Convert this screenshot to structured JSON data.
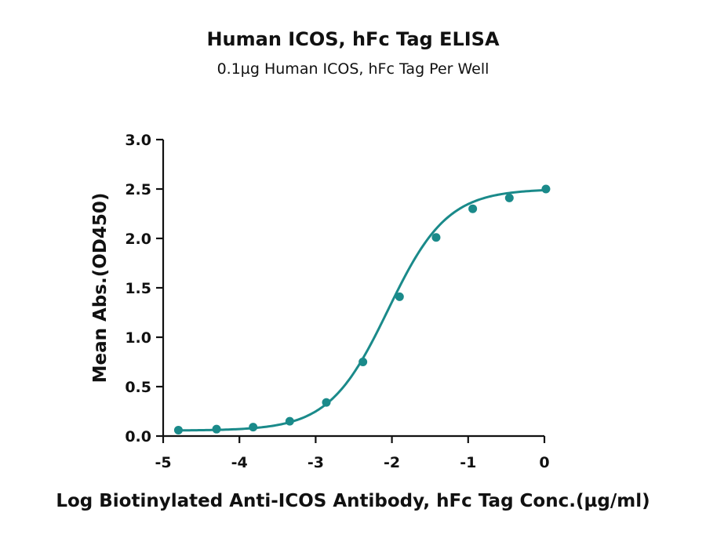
{
  "chart_data": {
    "type": "line",
    "title": "Human ICOS, hFc Tag ELISA",
    "subtitle": "0.1µg Human ICOS, hFc Tag Per Well",
    "xlabel": "Log Biotinylated Anti-ICOS Antibody, hFc Tag Conc.(µg/ml)",
    "ylabel": "Mean Abs.(OD450)",
    "xlim": [
      -5,
      0
    ],
    "ylim": [
      0,
      3.0
    ],
    "x_ticks": [
      -5,
      -4,
      -3,
      -2,
      -1,
      0
    ],
    "x_tick_labels": [
      "-5",
      "-4",
      "-3",
      "-2",
      "-1",
      "0"
    ],
    "y_ticks": [
      0,
      0.5,
      1.0,
      1.5,
      2.0,
      2.5,
      3.0
    ],
    "y_tick_labels": [
      "0.0",
      "0.5",
      "1.0",
      "1.5",
      "2.0",
      "2.5",
      "3.0"
    ],
    "grid": false,
    "series": [
      {
        "color": "#1a8a8a",
        "points": [
          {
            "x": -4.8,
            "y": 0.06
          },
          {
            "x": -4.3,
            "y": 0.07
          },
          {
            "x": -3.82,
            "y": 0.09
          },
          {
            "x": -3.34,
            "y": 0.15
          },
          {
            "x": -2.86,
            "y": 0.34
          },
          {
            "x": -2.38,
            "y": 0.75
          },
          {
            "x": -1.9,
            "y": 1.41
          },
          {
            "x": -1.42,
            "y": 2.01
          },
          {
            "x": -0.94,
            "y": 2.3
          },
          {
            "x": -0.46,
            "y": 2.41
          },
          {
            "x": 0.02,
            "y": 2.5
          }
        ],
        "fit": {
          "model": "4PL",
          "bottom": 0.055,
          "top": 2.5,
          "logEC50": -2.05,
          "hill": 1.12
        }
      }
    ]
  }
}
